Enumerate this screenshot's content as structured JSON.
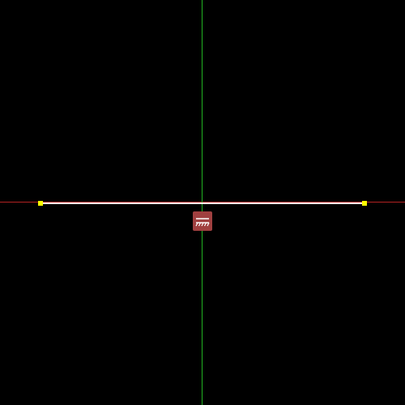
{
  "viewport": {
    "background_color": "#000000"
  },
  "axes": {
    "x_axis_color": "#b22222",
    "y_axis_color": "#22b222"
  },
  "sketch": {
    "line_color": "#ffffff",
    "endpoint_color": "#ffff00",
    "constraint": {
      "type": "horizontal",
      "icon": "horizontal-constraint-icon",
      "badge_color": "#a04040",
      "glyph_color": "#ffffff"
    }
  }
}
